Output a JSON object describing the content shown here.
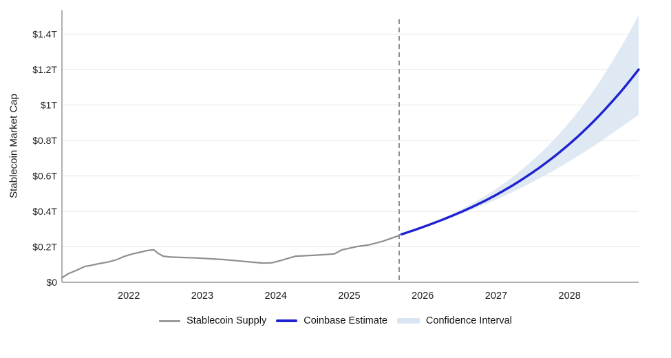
{
  "figure": {
    "background": "#ffffff"
  },
  "legend": {
    "items": [
      {
        "label": "Stablecoin Supply",
        "swatch": "line",
        "color": "#9a9a9a"
      },
      {
        "label": "Coinbase Estimate",
        "swatch": "line",
        "color": "#1e22cf"
      },
      {
        "label": "Confidence Interval",
        "swatch": "band",
        "color": "#d9e5f2"
      }
    ]
  },
  "colors": {
    "historical_line": "#8e8e8e",
    "forecast_line": "#1e22cf",
    "band_fill": "#b9cfe6",
    "gridline": "#e4e4e4",
    "axis": "#969696",
    "divider": "#8f8f8f",
    "tick_text": "#1c1c1c"
  },
  "chart_data": {
    "type": "line",
    "title": "",
    "xlabel": "",
    "ylabel": "Stablecoin Market Cap",
    "grid": "horizontal",
    "legend_position": "bottom",
    "xlim": [
      2021.09,
      2028.94
    ],
    "ylim": [
      0,
      1.534
    ],
    "x_ticks": [
      {
        "v": 2022,
        "label": "2022"
      },
      {
        "v": 2023,
        "label": "2023"
      },
      {
        "v": 2024,
        "label": "2024"
      },
      {
        "v": 2025,
        "label": "2025"
      },
      {
        "v": 2026,
        "label": "2026"
      },
      {
        "v": 2027,
        "label": "2027"
      },
      {
        "v": 2028,
        "label": "2028"
      }
    ],
    "y_ticks": [
      {
        "v": 0,
        "label": "$0"
      },
      {
        "v": 0.2,
        "label": "$0.2T"
      },
      {
        "v": 0.4,
        "label": "$0.4T"
      },
      {
        "v": 0.6,
        "label": "$0.6T"
      },
      {
        "v": 0.8,
        "label": "$0.8T"
      },
      {
        "v": 1.0,
        "label": "$1T"
      },
      {
        "v": 1.2,
        "label": "$1.2T"
      },
      {
        "v": 1.4,
        "label": "$1.4T"
      }
    ],
    "forecast_divider_x": 2025.68,
    "series": [
      {
        "name": "Stablecoin Supply",
        "style": "solid",
        "x": [
          2021.09,
          2021.17,
          2021.28,
          2021.4,
          2021.47,
          2021.59,
          2021.72,
          2021.84,
          2021.93,
          2022.05,
          2022.15,
          2022.26,
          2022.34,
          2022.4,
          2022.47,
          2022.57,
          2022.73,
          2022.92,
          2023.1,
          2023.29,
          2023.48,
          2023.66,
          2023.83,
          2023.95,
          2024.08,
          2024.27,
          2024.55,
          2024.8,
          2024.9,
          2024.97,
          2025.11,
          2025.27,
          2025.46,
          2025.64,
          2025.68
        ],
        "y": [
          0.025,
          0.047,
          0.066,
          0.089,
          0.094,
          0.105,
          0.114,
          0.128,
          0.145,
          0.16,
          0.169,
          0.18,
          0.183,
          0.163,
          0.147,
          0.142,
          0.14,
          0.137,
          0.133,
          0.128,
          0.121,
          0.114,
          0.108,
          0.11,
          0.124,
          0.147,
          0.153,
          0.16,
          0.183,
          0.189,
          0.202,
          0.211,
          0.232,
          0.258,
          0.262
        ]
      },
      {
        "name": "Coinbase Estimate",
        "style": "solid",
        "x": [
          2025.71,
          2026.0,
          2026.33,
          2026.67,
          2027.0,
          2027.33,
          2027.67,
          2028.0,
          2028.33,
          2028.67,
          2028.94
        ],
        "y": [
          0.27,
          0.311,
          0.363,
          0.424,
          0.493,
          0.574,
          0.671,
          0.781,
          0.909,
          1.062,
          1.2
        ]
      }
    ],
    "band": {
      "name": "Confidence Interval",
      "x": [
        2025.71,
        2026.0,
        2026.33,
        2026.67,
        2027.0,
        2027.33,
        2027.67,
        2028.0,
        2028.33,
        2028.67,
        2028.94
      ],
      "upper": [
        0.272,
        0.315,
        0.371,
        0.444,
        0.527,
        0.629,
        0.755,
        0.904,
        1.083,
        1.306,
        1.506
      ],
      "lower": [
        0.268,
        0.309,
        0.356,
        0.41,
        0.466,
        0.531,
        0.604,
        0.683,
        0.769,
        0.866,
        0.945
      ]
    }
  }
}
